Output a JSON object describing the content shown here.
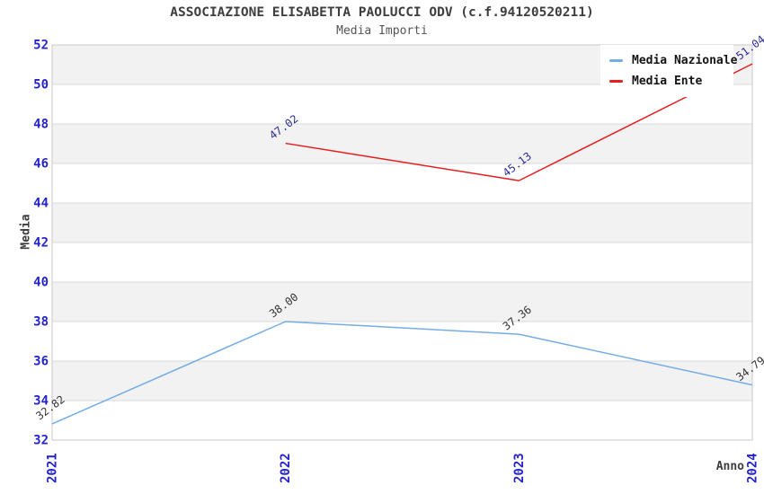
{
  "header": {
    "title": "ASSOCIAZIONE ELISABETTA PAOLUCCI ODV (c.f.94120520211)",
    "subtitle": "Media Importi"
  },
  "legend": {
    "items": [
      {
        "label": "Media Nazionale",
        "color": "#74ace6"
      },
      {
        "label": "Media Ente",
        "color": "#e61d1d"
      }
    ]
  },
  "chart_data": {
    "type": "line",
    "title": "ASSOCIAZIONE ELISABETTA PAOLUCCI ODV (c.f.94120520211)",
    "subtitle": "Media Importi",
    "xlabel": "Anno",
    "ylabel": "Media",
    "x": [
      2021,
      2022,
      2023,
      2024
    ],
    "series": [
      {
        "name": "Media Nazionale",
        "color": "#74ace6",
        "label_color": "#333333",
        "values": [
          32.82,
          38.0,
          37.36,
          34.79
        ]
      },
      {
        "name": "Media Ente",
        "color": "#e61d1d",
        "label_color": "#2b2b99",
        "values": [
          null,
          47.02,
          45.13,
          51.04
        ]
      }
    ],
    "ylim": [
      32,
      52
    ],
    "ytick_step": 2,
    "yticks": [
      32,
      34,
      36,
      38,
      40,
      42,
      44,
      46,
      48,
      50,
      52
    ],
    "grid": "horizontal gridlines with alternating band shading",
    "legend_position": "top-right",
    "tick_color": "#2323cb",
    "band_color": "#f2f2f2",
    "gridline_color": "#d9d9d9",
    "border_color": "#c8c8c8",
    "data_label_rotation_deg": -37,
    "xtick_rotation_deg": -90
  }
}
